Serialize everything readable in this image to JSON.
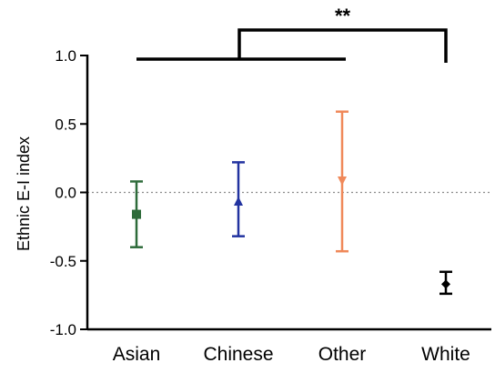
{
  "chart_data": {
    "type": "scatter",
    "ylabel": "Ethnic E-I index",
    "xlabel": "",
    "ylim": [
      -1.0,
      1.0
    ],
    "yticks": [
      1.0,
      0.5,
      0.0,
      -0.5,
      -1.0
    ],
    "ytick_labels": [
      "1.0",
      "0.5",
      "0.0",
      "-0.5",
      "-1.0"
    ],
    "categories": [
      "Asian",
      "Chinese",
      "Other",
      "White"
    ],
    "reference_line": 0.0,
    "series": [
      {
        "category": "Asian",
        "mean": -0.16,
        "lower": -0.4,
        "upper": 0.08,
        "marker": "square",
        "color": "#2e6b3a"
      },
      {
        "category": "Chinese",
        "mean": -0.07,
        "lower": -0.32,
        "upper": 0.22,
        "marker": "triangle-up",
        "color": "#2233a0"
      },
      {
        "category": "Other",
        "mean": 0.09,
        "lower": -0.43,
        "upper": 0.59,
        "marker": "triangle-down",
        "color": "#f0895a"
      },
      {
        "category": "White",
        "mean": -0.67,
        "lower": -0.74,
        "upper": -0.58,
        "marker": "diamond",
        "color": "#000000"
      }
    ],
    "significance": {
      "label": "**",
      "group_span": [
        "Asian",
        "Other"
      ],
      "compare_to": "White"
    }
  }
}
